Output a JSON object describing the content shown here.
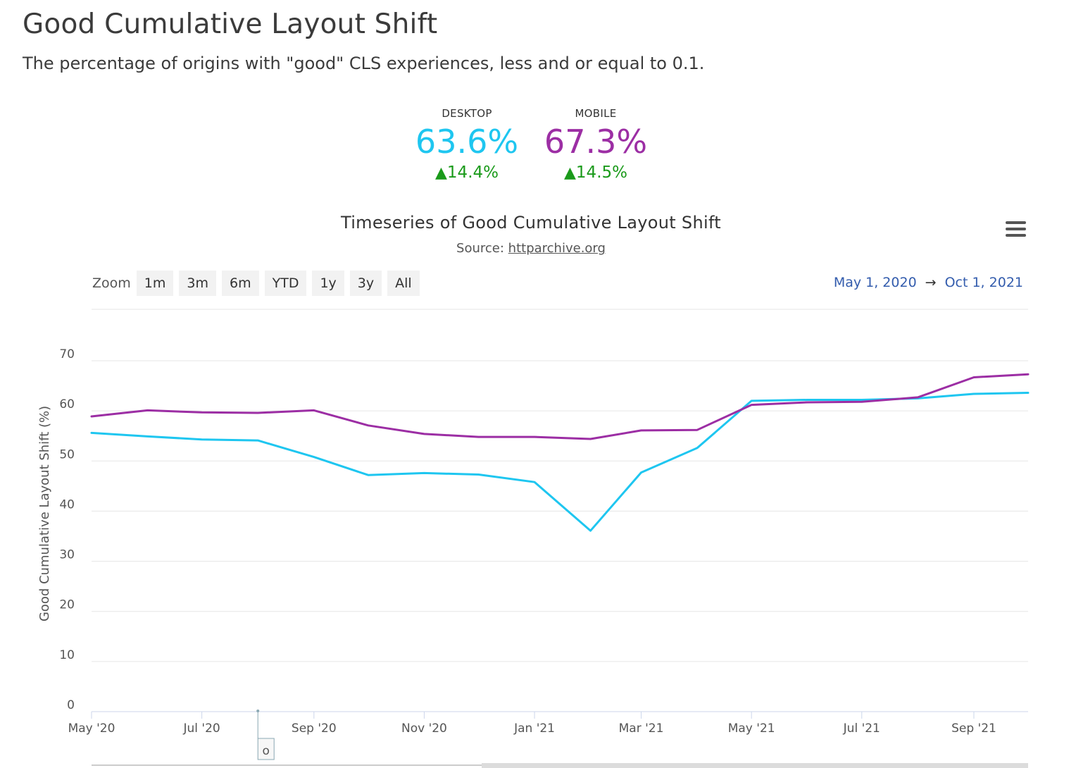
{
  "page": {
    "title": "Good Cumulative Layout Shift",
    "subtitle": "The percentage of origins with \"good\" CLS experiences, less and or equal to 0.1."
  },
  "metrics": {
    "desktop": {
      "label": "DESKTOP",
      "value": "63.6%",
      "change": "14.4%",
      "color": "#1ec6f0"
    },
    "mobile": {
      "label": "MOBILE",
      "value": "67.3%",
      "change": "14.5%",
      "color": "#9c2ea4"
    },
    "up_color": "#1a9a1a",
    "up_icon": "triangle-up-icon"
  },
  "chart_header": {
    "title": "Timeseries of Good Cumulative Layout Shift",
    "source_prefix": "Source:",
    "source_link": "httparchive.org"
  },
  "zoom": {
    "label": "Zoom",
    "buttons": [
      "1m",
      "3m",
      "6m",
      "YTD",
      "1y",
      "3y",
      "All"
    ]
  },
  "range": {
    "from": "May 1, 2020",
    "arrow": "→",
    "to": "Oct 1, 2021"
  },
  "navigator": {
    "handle_label": "o"
  },
  "chart_data": {
    "type": "line",
    "title": "Timeseries of Good Cumulative Layout Shift",
    "ylabel": "Good Cumulative Layout Shift (%)",
    "xlabel": "",
    "ylim": [
      0,
      70
    ],
    "yticks": [
      0,
      10,
      20,
      30,
      40,
      50,
      60,
      70
    ],
    "grid": true,
    "x": [
      "2020-05-01",
      "2020-06-01",
      "2020-07-01",
      "2020-08-01",
      "2020-09-01",
      "2020-10-01",
      "2020-11-01",
      "2020-12-01",
      "2021-01-01",
      "2021-02-01",
      "2021-03-01",
      "2021-04-01",
      "2021-05-01",
      "2021-06-01",
      "2021-07-01",
      "2021-08-01",
      "2021-09-01",
      "2021-10-01"
    ],
    "xticks": [
      {
        "date": "2020-05-01",
        "label": "May '20"
      },
      {
        "date": "2020-07-01",
        "label": "Jul '20"
      },
      {
        "date": "2020-09-01",
        "label": "Sep '20"
      },
      {
        "date": "2020-11-01",
        "label": "Nov '20"
      },
      {
        "date": "2021-01-01",
        "label": "Jan '21"
      },
      {
        "date": "2021-03-01",
        "label": "Mar '21"
      },
      {
        "date": "2021-05-01",
        "label": "May '21"
      },
      {
        "date": "2021-07-01",
        "label": "Jul '21"
      },
      {
        "date": "2021-09-01",
        "label": "Sep '21"
      }
    ],
    "series": [
      {
        "key": "desktop",
        "color": "#1ec6f0",
        "values": [
          55.6,
          54.9,
          54.3,
          54.1,
          50.8,
          47.2,
          47.6,
          47.3,
          45.8,
          36.1,
          47.7,
          52.6,
          62.0,
          62.2,
          62.2,
          62.5,
          63.4,
          63.6
        ]
      },
      {
        "key": "mobile",
        "color": "#9c2ea4",
        "values": [
          58.9,
          60.1,
          59.7,
          59.6,
          60.1,
          57.1,
          55.4,
          54.8,
          54.8,
          54.4,
          56.1,
          56.2,
          61.2,
          61.7,
          61.8,
          62.7,
          66.7,
          67.3
        ]
      }
    ]
  }
}
